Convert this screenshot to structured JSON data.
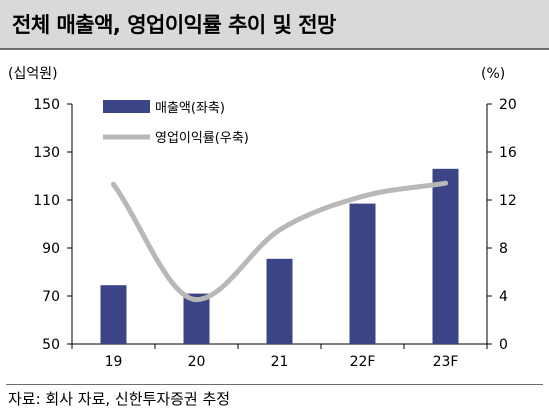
{
  "title": "전체 매출액, 영업이익률 추이 및 전망",
  "source": "자료: 회사 자료, 신한투자증권 추정",
  "chart_data": {
    "type": "bar+line",
    "categories": [
      "19",
      "20",
      "21",
      "22F",
      "23F"
    ],
    "series": [
      {
        "name": "매출액(좌축)",
        "type": "bar",
        "axis": "left",
        "values": [
          74.5,
          71,
          85.5,
          108.5,
          123
        ]
      },
      {
        "name": "영업이익률(우축)",
        "type": "line",
        "axis": "right",
        "values": [
          13.3,
          3.7,
          9.5,
          12.3,
          13.4
        ]
      }
    ],
    "left_axis": {
      "unit": "(십억원)",
      "min": 50,
      "max": 150,
      "ticks": [
        50,
        70,
        90,
        110,
        130,
        150
      ]
    },
    "right_axis": {
      "unit": "(%)",
      "min": 0,
      "max": 20,
      "ticks": [
        0,
        4,
        8,
        12,
        16,
        20
      ]
    },
    "colors": {
      "bar": "#3b4585",
      "line": "#b8b8b8"
    },
    "grid": false,
    "legend_position": "top-left"
  }
}
